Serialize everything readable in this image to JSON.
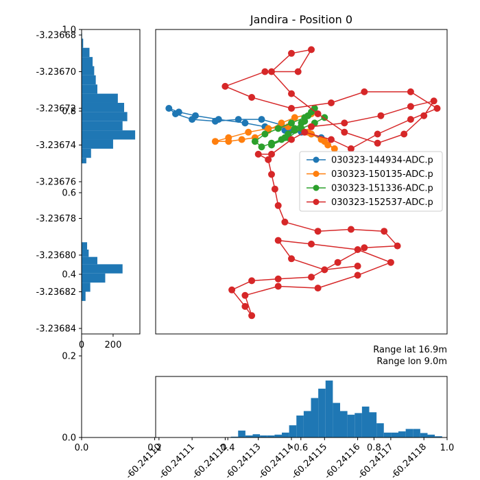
{
  "chart_data": {
    "type": "scatter",
    "title": "Jandira - Position 0",
    "annotations": [
      "Range lat 16.9m",
      "Range lon 9.0m"
    ],
    "annotation_color": "#ff0000",
    "background_axes": {
      "xlim": [
        0.0,
        1.0
      ],
      "ylim": [
        0.0,
        1.0
      ],
      "x_ticks": [
        "0.0",
        "0.2",
        "0.4",
        "0.6",
        "0.8",
        "1.0"
      ],
      "y_ticks": [
        "0.0",
        "0.2",
        "0.4",
        "0.6",
        "0.8",
        "1.0"
      ]
    },
    "lat_axis": {
      "ylim": [
        -3.236843,
        -3.236677
      ],
      "ticks": [
        -3.23668,
        -3.2367,
        -3.23672,
        -3.23674,
        -3.23676,
        -3.23678,
        -3.2368,
        -3.23682,
        -3.23684
      ],
      "tick_labels": [
        "-3.23668",
        "-3.23670",
        "-3.23672",
        "-3.23674",
        "-3.23676",
        "-3.23678",
        "-3.23680",
        "-3.23682",
        "-3.23684"
      ]
    },
    "lon_axis": {
      "xlim": [
        -60.241187,
        -60.241099
      ],
      "inverted": true,
      "ticks": [
        -60.24118,
        -60.24117,
        -60.24116,
        -60.24115,
        -60.24114,
        -60.24113,
        -60.24112,
        -60.24111,
        -60.2411
      ],
      "tick_labels": [
        "-60.24118",
        "-60.24117",
        "-60.24116",
        "-60.24115",
        "-60.24114",
        "-60.24113",
        "-60.24112",
        "-60.24111",
        "-60.24110"
      ]
    },
    "series": [
      {
        "name": "030323-144934-ADC.p",
        "color": "#1f77b4",
        "path": [
          [
            -60.24114,
            -3.236732
          ],
          [
            -60.241132,
            -3.23673
          ],
          [
            -60.241126,
            -3.236728
          ],
          [
            -60.241118,
            -3.236726
          ],
          [
            -60.241111,
            -3.236724
          ],
          [
            -60.241106,
            -3.236722
          ],
          [
            -60.241103,
            -3.23672
          ],
          [
            -60.241105,
            -3.236723
          ],
          [
            -60.24111,
            -3.236726
          ],
          [
            -60.241117,
            -3.236727
          ],
          [
            -60.241124,
            -3.236726
          ],
          [
            -60.241131,
            -3.236726
          ],
          [
            -60.241137,
            -3.236729
          ],
          [
            -60.241143,
            -3.236733
          ],
          [
            -60.241149,
            -3.236736
          ],
          [
            -60.241146,
            -3.236734
          ],
          [
            -60.241138,
            -3.236732
          ]
        ]
      },
      {
        "name": "030323-150135-ADC.p",
        "color": "#ff7f0e",
        "path": [
          [
            -60.241146,
            -3.236723
          ],
          [
            -60.241141,
            -3.236725
          ],
          [
            -60.241137,
            -3.236728
          ],
          [
            -60.241133,
            -3.236732
          ],
          [
            -60.241129,
            -3.236736
          ],
          [
            -60.241125,
            -3.236737
          ],
          [
            -60.241121,
            -3.236738
          ],
          [
            -60.241117,
            -3.236738
          ],
          [
            -60.241121,
            -3.236736
          ],
          [
            -60.241127,
            -3.236733
          ],
          [
            -60.241133,
            -3.236731
          ],
          [
            -60.241139,
            -3.23673
          ],
          [
            -60.241145,
            -3.236733
          ],
          [
            -60.241149,
            -3.236737
          ],
          [
            -60.241151,
            -3.23674
          ],
          [
            -60.241153,
            -3.236742
          ],
          [
            -60.24115,
            -3.236738
          ],
          [
            -60.241146,
            -3.236734
          ]
        ]
      },
      {
        "name": "030323-151336-ADC.p",
        "color": "#2ca02c",
        "path": [
          [
            -60.241147,
            -3.23672
          ],
          [
            -60.241145,
            -3.236724
          ],
          [
            -60.241143,
            -3.236728
          ],
          [
            -60.241141,
            -3.236731
          ],
          [
            -60.241139,
            -3.236734
          ],
          [
            -60.241137,
            -3.236737
          ],
          [
            -60.241134,
            -3.236739
          ],
          [
            -60.241131,
            -3.236741
          ],
          [
            -60.241129,
            -3.236738
          ],
          [
            -60.241132,
            -3.236734
          ],
          [
            -60.241136,
            -3.236731
          ],
          [
            -60.24114,
            -3.236728
          ],
          [
            -60.241144,
            -3.236725
          ],
          [
            -60.241146,
            -3.236722
          ],
          [
            -60.241144,
            -3.236727
          ],
          [
            -60.241141,
            -3.236732
          ],
          [
            -60.241138,
            -3.236736
          ],
          [
            -60.241134,
            -3.23674
          ],
          [
            -60.241139,
            -3.236736
          ],
          [
            -60.241143,
            -3.236731
          ],
          [
            -60.241147,
            -3.236728
          ],
          [
            -60.24115,
            -3.236725
          ]
        ]
      },
      {
        "name": "030323-152537-ADC.p",
        "color": "#d62728",
        "path": [
          [
            -60.241146,
            -3.23673
          ],
          [
            -60.241156,
            -3.236728
          ],
          [
            -60.241167,
            -3.236724
          ],
          [
            -60.241176,
            -3.236719
          ],
          [
            -60.241183,
            -3.236716
          ],
          [
            -60.24118,
            -3.236724
          ],
          [
            -60.241174,
            -3.236734
          ],
          [
            -60.241166,
            -3.236739
          ],
          [
            -60.241156,
            -3.236733
          ],
          [
            -60.241148,
            -3.236723
          ],
          [
            -60.24114,
            -3.236712
          ],
          [
            -60.241134,
            -3.2367
          ],
          [
            -60.24114,
            -3.23669
          ],
          [
            -60.241146,
            -3.236688
          ],
          [
            -60.241142,
            -3.2367
          ],
          [
            -60.241132,
            -3.2367
          ],
          [
            -60.24112,
            -3.236708
          ],
          [
            -60.241128,
            -3.236714
          ],
          [
            -60.24114,
            -3.23672
          ],
          [
            -60.241152,
            -3.236717
          ],
          [
            -60.241162,
            -3.236711
          ],
          [
            -60.241176,
            -3.236711
          ],
          [
            -60.241184,
            -3.23672
          ],
          [
            -60.241176,
            -3.236726
          ],
          [
            -60.241166,
            -3.236734
          ],
          [
            -60.241158,
            -3.236742
          ],
          [
            -60.241152,
            -3.236737
          ],
          [
            -60.241144,
            -3.236733
          ],
          [
            -60.24114,
            -3.236737
          ],
          [
            -60.241134,
            -3.236745
          ],
          [
            -60.24113,
            -3.236745
          ],
          [
            -60.241133,
            -3.236748
          ],
          [
            -60.241134,
            -3.236756
          ],
          [
            -60.241135,
            -3.236764
          ],
          [
            -60.241136,
            -3.236773
          ],
          [
            -60.241138,
            -3.236782
          ],
          [
            -60.241148,
            -3.236787
          ],
          [
            -60.241158,
            -3.236786
          ],
          [
            -60.241168,
            -3.236787
          ],
          [
            -60.241172,
            -3.236795
          ],
          [
            -60.241162,
            -3.236796
          ],
          [
            -60.241154,
            -3.236804
          ],
          [
            -60.241146,
            -3.236812
          ],
          [
            -60.241136,
            -3.236813
          ],
          [
            -60.241128,
            -3.236814
          ],
          [
            -60.241122,
            -3.236819
          ],
          [
            -60.241126,
            -3.236828
          ],
          [
            -60.241128,
            -3.236833
          ],
          [
            -60.241126,
            -3.236822
          ],
          [
            -60.241136,
            -3.236817
          ],
          [
            -60.241148,
            -3.236818
          ],
          [
            -60.24116,
            -3.236811
          ],
          [
            -60.24117,
            -3.236804
          ],
          [
            -60.24116,
            -3.236797
          ],
          [
            -60.241146,
            -3.236794
          ],
          [
            -60.241136,
            -3.236792
          ],
          [
            -60.24114,
            -3.236802
          ],
          [
            -60.24115,
            -3.236808
          ],
          [
            -60.24116,
            -3.236806
          ]
        ]
      }
    ],
    "lat_histogram": {
      "color": "#1f77b4",
      "xlim": [
        0,
        370
      ],
      "x_ticks": [
        0,
        200
      ],
      "bins": [
        {
          "lat": [
            -3.236679,
            -3.236682
          ],
          "count": 3
        },
        {
          "lat": [
            -3.236682,
            -3.236687
          ],
          "count": 10
        },
        {
          "lat": [
            -3.236687,
            -3.236692
          ],
          "count": 50
        },
        {
          "lat": [
            -3.236692,
            -3.236697
          ],
          "count": 70
        },
        {
          "lat": [
            -3.236697,
            -3.236702
          ],
          "count": 80
        },
        {
          "lat": [
            -3.236702,
            -3.236707
          ],
          "count": 90
        },
        {
          "lat": [
            -3.236707,
            -3.236712
          ],
          "count": 100
        },
        {
          "lat": [
            -3.236712,
            -3.236717
          ],
          "count": 230
        },
        {
          "lat": [
            -3.236717,
            -3.236722
          ],
          "count": 270
        },
        {
          "lat": [
            -3.236722,
            -3.236727
          ],
          "count": 290
        },
        {
          "lat": [
            -3.236727,
            -3.236732
          ],
          "count": 260
        },
        {
          "lat": [
            -3.236732,
            -3.236737
          ],
          "count": 340
        },
        {
          "lat": [
            -3.236737,
            -3.236742
          ],
          "count": 200
        },
        {
          "lat": [
            -3.236742,
            -3.236747
          ],
          "count": 60
        },
        {
          "lat": [
            -3.236747,
            -3.23675
          ],
          "count": 30
        },
        {
          "lat": [
            -3.236793,
            -3.236797
          ],
          "count": 35
        },
        {
          "lat": [
            -3.236797,
            -3.236801
          ],
          "count": 45
        },
        {
          "lat": [
            -3.236801,
            -3.236805
          ],
          "count": 100
        },
        {
          "lat": [
            -3.236805,
            -3.23681
          ],
          "count": 260
        },
        {
          "lat": [
            -3.23681,
            -3.236815
          ],
          "count": 150
        },
        {
          "lat": [
            -3.236815,
            -3.23682
          ],
          "count": 55
        },
        {
          "lat": [
            -3.23682,
            -3.236825
          ],
          "count": 25
        }
      ]
    },
    "lon_histogram": {
      "color": "#1f77b4",
      "ylim": [
        0.0,
        0.15
      ],
      "bins": [
        {
          "lon": [
            -60.2411855,
            -60.2411833
          ],
          "value": 0.003
        },
        {
          "lon": [
            -60.2411833,
            -60.2411811
          ],
          "value": 0.007
        },
        {
          "lon": [
            -60.2411811,
            -60.2411789
          ],
          "value": 0.011
        },
        {
          "lon": [
            -60.2411789,
            -60.2411767
          ],
          "value": 0.021
        },
        {
          "lon": [
            -60.2411767,
            -60.2411745
          ],
          "value": 0.021
        },
        {
          "lon": [
            -60.2411745,
            -60.2411723
          ],
          "value": 0.015
        },
        {
          "lon": [
            -60.2411723,
            -60.2411701
          ],
          "value": 0.012
        },
        {
          "lon": [
            -60.2411701,
            -60.2411679
          ],
          "value": 0.012
        },
        {
          "lon": [
            -60.2411679,
            -60.2411657
          ],
          "value": 0.035
        },
        {
          "lon": [
            -60.2411657,
            -60.2411635
          ],
          "value": 0.062
        },
        {
          "lon": [
            -60.2411635,
            -60.2411613
          ],
          "value": 0.076
        },
        {
          "lon": [
            -60.2411613,
            -60.2411591
          ],
          "value": 0.06
        },
        {
          "lon": [
            -60.2411591,
            -60.2411569
          ],
          "value": 0.056
        },
        {
          "lon": [
            -60.2411569,
            -60.2411547
          ],
          "value": 0.065
        },
        {
          "lon": [
            -60.2411547,
            -60.2411525
          ],
          "value": 0.085
        },
        {
          "lon": [
            -60.2411525,
            -60.2411503
          ],
          "value": 0.14
        },
        {
          "lon": [
            -60.2411503,
            -60.2411481
          ],
          "value": 0.12
        },
        {
          "lon": [
            -60.2411481,
            -60.2411459
          ],
          "value": 0.097
        },
        {
          "lon": [
            -60.2411459,
            -60.2411437
          ],
          "value": 0.065
        },
        {
          "lon": [
            -60.2411437,
            -60.2411415
          ],
          "value": 0.054
        },
        {
          "lon": [
            -60.2411415,
            -60.2411393
          ],
          "value": 0.03
        },
        {
          "lon": [
            -60.2411393,
            -60.2411371
          ],
          "value": 0.012
        },
        {
          "lon": [
            -60.2411371,
            -60.2411349
          ],
          "value": 0.007
        },
        {
          "lon": [
            -60.2411349,
            -60.2411327
          ],
          "value": 0.005
        },
        {
          "lon": [
            -60.2411327,
            -60.2411305
          ],
          "value": 0.005
        },
        {
          "lon": [
            -60.2411305,
            -60.2411283
          ],
          "value": 0.008
        },
        {
          "lon": [
            -60.2411283,
            -60.2411261
          ],
          "value": 0.005
        },
        {
          "lon": [
            -60.2411261,
            -60.2411239
          ],
          "value": 0.017
        },
        {
          "lon": [
            -60.2411239,
            -60.2411217
          ],
          "value": 0.002
        }
      ]
    }
  }
}
